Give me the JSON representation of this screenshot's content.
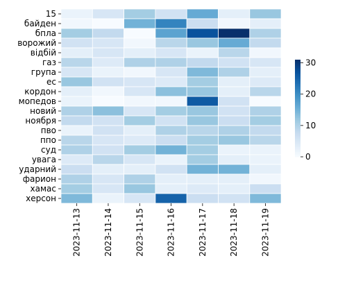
{
  "chart_data": {
    "type": "heatmap",
    "title": "",
    "xlabel": "",
    "ylabel": "",
    "colormap": "Blues",
    "cell_border_color": "#ffffff",
    "x_categories": [
      "2023-11-13",
      "2023-11-14",
      "2023-11-15",
      "2023-11-16",
      "2023-11-17",
      "2023-11-18",
      "2023-11-19"
    ],
    "y_categories": [
      "15",
      "байден",
      "бпла",
      "ворожий",
      "відбій",
      "газ",
      "група",
      "ес",
      "кордон",
      "мопедов",
      "новий",
      "ноября",
      "пво",
      "ппо",
      "суд",
      "увага",
      "ударний",
      "фарион",
      "хамас",
      "херсон"
    ],
    "values": [
      [
        2,
        5,
        11,
        6,
        16,
        3,
        12
      ],
      [
        1,
        0,
        15,
        21,
        7,
        1,
        3
      ],
      [
        11,
        8,
        0,
        17,
        27,
        31,
        10
      ],
      [
        6,
        5,
        1,
        9,
        12,
        16,
        8
      ],
      [
        3,
        5,
        3,
        5,
        2,
        9,
        1
      ],
      [
        9,
        4,
        10,
        10,
        8,
        6,
        5
      ],
      [
        5,
        2,
        1,
        5,
        14,
        10,
        3
      ],
      [
        12,
        6,
        5,
        4,
        11,
        3,
        4
      ],
      [
        3,
        1,
        5,
        13,
        12,
        3,
        9
      ],
      [
        2,
        0,
        1,
        1,
        26,
        6,
        0
      ],
      [
        10,
        13,
        5,
        11,
        12,
        6,
        10
      ],
      [
        8,
        6,
        11,
        6,
        12,
        7,
        11
      ],
      [
        2,
        6,
        3,
        10,
        9,
        10,
        8
      ],
      [
        9,
        5,
        4,
        7,
        11,
        12,
        9
      ],
      [
        10,
        6,
        11,
        15,
        11,
        2,
        2
      ],
      [
        4,
        9,
        5,
        2,
        11,
        3,
        2
      ],
      [
        7,
        3,
        3,
        6,
        15,
        15,
        3
      ],
      [
        10,
        5,
        10,
        3,
        3,
        3,
        1
      ],
      [
        11,
        5,
        12,
        3,
        4,
        3,
        7
      ],
      [
        14,
        2,
        5,
        25,
        7,
        6,
        14
      ]
    ],
    "vmin": 0,
    "vmax": 31,
    "colorbar_ticks": [
      0,
      10,
      20,
      30
    ]
  }
}
